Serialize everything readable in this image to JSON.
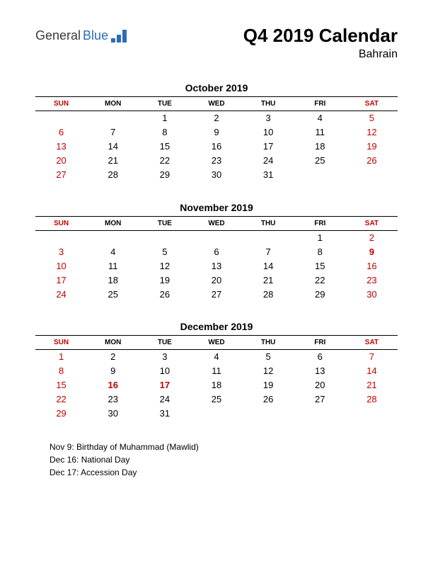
{
  "logo": {
    "text_general": "General",
    "text_blue": "Blue",
    "icon_color": "#2a6cb8"
  },
  "header": {
    "title": "Q4 2019 Calendar",
    "subtitle": "Bahrain"
  },
  "day_headers": [
    "SUN",
    "MON",
    "TUE",
    "WED",
    "THU",
    "FRI",
    "SAT"
  ],
  "weekend_columns": [
    0,
    6
  ],
  "colors": {
    "weekend": "#c00000",
    "weekday": "#000000",
    "background": "#ffffff"
  },
  "months": [
    {
      "title": "October 2019",
      "weeks": [
        [
          "",
          "",
          "1",
          "2",
          "3",
          "4",
          "5"
        ],
        [
          "6",
          "7",
          "8",
          "9",
          "10",
          "11",
          "12"
        ],
        [
          "13",
          "14",
          "15",
          "16",
          "17",
          "18",
          "19"
        ],
        [
          "20",
          "21",
          "22",
          "23",
          "24",
          "25",
          "26"
        ],
        [
          "27",
          "28",
          "29",
          "30",
          "31",
          "",
          ""
        ]
      ],
      "holidays": []
    },
    {
      "title": "November 2019",
      "weeks": [
        [
          "",
          "",
          "",
          "",
          "",
          "1",
          "2"
        ],
        [
          "3",
          "4",
          "5",
          "6",
          "7",
          "8",
          "9"
        ],
        [
          "10",
          "11",
          "12",
          "13",
          "14",
          "15",
          "16"
        ],
        [
          "17",
          "18",
          "19",
          "20",
          "21",
          "22",
          "23"
        ],
        [
          "24",
          "25",
          "26",
          "27",
          "28",
          "29",
          "30"
        ]
      ],
      "holidays": [
        "9"
      ]
    },
    {
      "title": "December 2019",
      "weeks": [
        [
          "1",
          "2",
          "3",
          "4",
          "5",
          "6",
          "7"
        ],
        [
          "8",
          "9",
          "10",
          "11",
          "12",
          "13",
          "14"
        ],
        [
          "15",
          "16",
          "17",
          "18",
          "19",
          "20",
          "21"
        ],
        [
          "22",
          "23",
          "24",
          "25",
          "26",
          "27",
          "28"
        ],
        [
          "29",
          "30",
          "31",
          "",
          "",
          "",
          ""
        ]
      ],
      "holidays": [
        "16",
        "17"
      ]
    }
  ],
  "holiday_notes": [
    "Nov 9: Birthday of Muhammad (Mawlid)",
    "Dec 16: National Day",
    "Dec 17: Accession Day"
  ]
}
